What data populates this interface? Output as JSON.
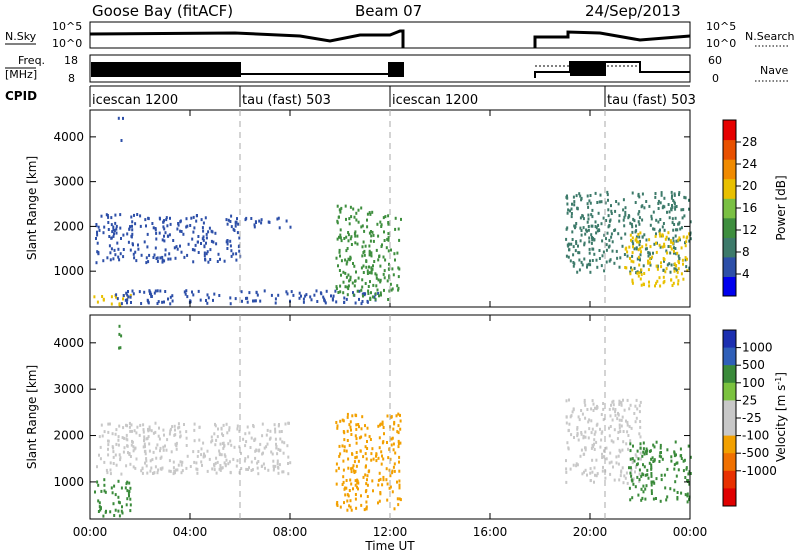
{
  "header": {
    "station": "Goose Bay (fitACF)",
    "beam": "Beam 07",
    "date": "24/Sep/2013"
  },
  "strips": {
    "nsky_label": "N.Sky",
    "nsky_ticks": [
      "10^5",
      "10^0"
    ],
    "nsearch_label": "N.Search",
    "nsearch_ticks": [
      "10^5",
      "10^0"
    ],
    "freq_label": "Freq.",
    "freq_unit": "[MHz]",
    "freq_ticks": [
      "18",
      "8"
    ],
    "nave_label": "Nave",
    "nave_ticks": [
      "60",
      "0"
    ],
    "cpid_label": "CPID"
  },
  "cpid_segments": [
    {
      "label": "icescan 1200",
      "start_hour": 0
    },
    {
      "label": "tau (fast) 503",
      "start_hour": 6
    },
    {
      "label": "icescan 1200",
      "start_hour": 12
    },
    {
      "label": "tau (fast) 503",
      "start_hour": 20.6
    }
  ],
  "time_axis": {
    "label": "Time UT",
    "ticks": [
      "00:00",
      "04:00",
      "08:00",
      "12:00",
      "16:00",
      "20:00",
      "00:00"
    ],
    "tick_hours": [
      0,
      4,
      8,
      12,
      16,
      20,
      24
    ]
  },
  "colors": {
    "power": [
      "#0000ee",
      "#2d4fa8",
      "#3d7a6a",
      "#3e8e3e",
      "#7ac043",
      "#e8c000",
      "#f08a00",
      "#e85000",
      "#e60000"
    ],
    "velocity": [
      "#1c2fb0",
      "#2f5fb8",
      "#3a8a3a",
      "#7bc23f",
      "#c8c8c8",
      "#c8c8c8",
      "#f2a000",
      "#f07000",
      "#e83000",
      "#e00000"
    ],
    "ground_scatter": "#bdbdbd"
  },
  "chart_data": [
    {
      "type": "heatmap",
      "title": "",
      "xlabel": "Time UT",
      "ylabel": "Slant Range [km]",
      "xlim_hours": [
        0,
        24
      ],
      "ylim": [
        200,
        4600
      ],
      "y_ticks": [
        1000,
        2000,
        3000,
        4000
      ],
      "colorbar": {
        "label": "Power [dB]",
        "ticks": [
          4,
          8,
          12,
          16,
          20,
          24,
          28
        ],
        "range": [
          0,
          32
        ]
      },
      "regions": [
        {
          "hours": [
            0.2,
            6.0
          ],
          "range_km": [
            1200,
            2300
          ],
          "value": 6
        },
        {
          "hours": [
            5.5,
            8.0
          ],
          "range_km": [
            2000,
            2250
          ],
          "value": 5
        },
        {
          "hours": [
            0.1,
            1.6
          ],
          "range_km": [
            250,
            500
          ],
          "value": 20
        },
        {
          "hours": [
            1.0,
            11.5
          ],
          "range_km": [
            300,
            600
          ],
          "value": 6
        },
        {
          "hours": [
            9.8,
            12.4
          ],
          "range_km": [
            400,
            2500
          ],
          "value": 12
        },
        {
          "hours": [
            19.0,
            24.0
          ],
          "range_km": [
            1000,
            2800
          ],
          "value": 8
        },
        {
          "hours": [
            21.3,
            24.0
          ],
          "range_km": [
            700,
            1900
          ],
          "value": 20
        },
        {
          "hours": [
            1.1,
            1.3
          ],
          "range_km": [
            3900,
            4500
          ],
          "value": 6
        }
      ]
    },
    {
      "type": "heatmap",
      "title": "",
      "xlabel": "Time UT",
      "ylabel": "Slant Range [km]",
      "xlim_hours": [
        0,
        24
      ],
      "ylim": [
        200,
        4600
      ],
      "y_ticks": [
        1000,
        2000,
        3000,
        4000
      ],
      "colorbar": {
        "label": "Velocity [m s^-1]",
        "ticks": [
          1000,
          500,
          100,
          25,
          -25,
          -100,
          -500,
          -1000
        ]
      },
      "regions": [
        {
          "hours": [
            0.2,
            8.0
          ],
          "range_km": [
            1200,
            2300
          ],
          "value": 0
        },
        {
          "hours": [
            0.1,
            1.6
          ],
          "range_km": [
            250,
            1100
          ],
          "value": 150
        },
        {
          "hours": [
            9.8,
            12.4
          ],
          "range_km": [
            400,
            2500
          ],
          "value": -400
        },
        {
          "hours": [
            19.0,
            22.0
          ],
          "range_km": [
            1000,
            2800
          ],
          "value": 0
        },
        {
          "hours": [
            21.5,
            24.0
          ],
          "range_km": [
            600,
            1900
          ],
          "value": 200
        },
        {
          "hours": [
            1.1,
            1.3
          ],
          "range_km": [
            3900,
            4500
          ],
          "value": 300
        }
      ]
    }
  ]
}
